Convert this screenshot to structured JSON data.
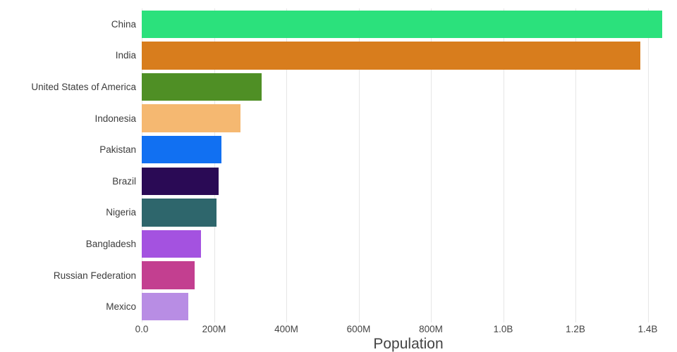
{
  "chart_data": {
    "type": "bar",
    "orientation": "horizontal",
    "title": "",
    "xlabel": "Population",
    "ylabel": "",
    "grid": true,
    "legend": "none",
    "background_color": "#ffffff",
    "gridline_color": "#e6e6e6",
    "xlim": [
      0,
      1475000000
    ],
    "x_ticks": [
      {
        "value": 0,
        "label": "0.0"
      },
      {
        "value": 200000000,
        "label": "200M"
      },
      {
        "value": 400000000,
        "label": "400M"
      },
      {
        "value": 600000000,
        "label": "600M"
      },
      {
        "value": 800000000,
        "label": "800M"
      },
      {
        "value": 1000000000,
        "label": "1.0B"
      },
      {
        "value": 1200000000,
        "label": "1.2B"
      },
      {
        "value": 1400000000,
        "label": "1.4B"
      }
    ],
    "categories": [
      "China",
      "India",
      "United States of America",
      "Indonesia",
      "Pakistan",
      "Brazil",
      "Nigeria",
      "Bangladesh",
      "Russian Federation",
      "Mexico"
    ],
    "values": [
      1439000000,
      1380000000,
      331000000,
      273500000,
      221000000,
      212600000,
      206100000,
      164700000,
      146000000,
      129000000
    ],
    "bar_colors": [
      "#2be17c",
      "#d87d1d",
      "#4f8f25",
      "#f5b871",
      "#1170f2",
      "#2a0a55",
      "#2e666c",
      "#a452e0",
      "#c33f90",
      "#b88de4"
    ]
  }
}
